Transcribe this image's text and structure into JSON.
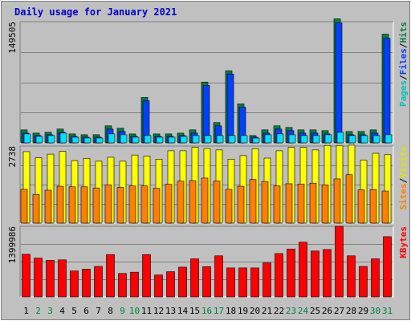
{
  "chart_data": {
    "type": "bar",
    "title": "Daily usage for January 2021",
    "categories": [
      "1",
      "2",
      "3",
      "4",
      "5",
      "6",
      "7",
      "8",
      "9",
      "10",
      "11",
      "12",
      "13",
      "14",
      "15",
      "16",
      "17",
      "18",
      "19",
      "20",
      "21",
      "22",
      "23",
      "24",
      "25",
      "26",
      "27",
      "28",
      "29",
      "30",
      "31"
    ],
    "weekend_days": [
      "2",
      "3",
      "9",
      "10",
      "16",
      "17",
      "23",
      "24",
      "30",
      "31"
    ],
    "colors": {
      "background": "#c0c0c0",
      "title": "#0000cc",
      "hits": "#008040",
      "files": "#0040ff",
      "pages": "#00e0ff",
      "visits": "#ffff00",
      "sites": "#ff8000",
      "kbytes": "#ff0000",
      "weekday_label": "#000000",
      "weekend_label": "#008040"
    },
    "panels": [
      {
        "id": "hits_files_pages",
        "max_label": "149505",
        "ylim": [
          0,
          149505
        ],
        "axis_labels": [
          {
            "text": "Pages",
            "color": "#00c0c0"
          },
          {
            "text": "/",
            "color": "#000000"
          },
          {
            "text": "Files",
            "color": "#0040ff"
          },
          {
            "text": "/",
            "color": "#000000"
          },
          {
            "text": "Hits",
            "color": "#008040"
          }
        ],
        "series": [
          {
            "name": "Hits",
            "values": [
              16000,
              12000,
              13000,
              17000,
              11000,
              10000,
              10000,
              21000,
              18000,
              11000,
              56000,
              11000,
              11000,
              12000,
              16000,
              75000,
              25000,
              89000,
              48000,
              9000,
              16000,
              21000,
              19000,
              16000,
              16000,
              15000,
              153000,
              14000,
              14000,
              16000,
              134000
            ]
          },
          {
            "name": "Files",
            "values": [
              12000,
              9000,
              10000,
              13000,
              8000,
              7000,
              7000,
              17000,
              14000,
              8000,
              52000,
              8000,
              8000,
              9000,
              12000,
              71000,
              21000,
              85000,
              44000,
              7000,
              12000,
              17000,
              15000,
              12000,
              12000,
              11000,
              148000,
              10000,
              10000,
              12000,
              129000
            ]
          },
          {
            "name": "Pages",
            "values": [
              11000,
              8000,
              9000,
              12000,
              7000,
              6000,
              6000,
              11000,
              10000,
              7000,
              9000,
              7000,
              7000,
              8000,
              9000,
              9000,
              9000,
              9000,
              9000,
              6000,
              10000,
              11000,
              10000,
              9000,
              9000,
              10000,
              13000,
              9000,
              9000,
              9000,
              10000
            ]
          }
        ]
      },
      {
        "id": "visits_sites",
        "max_label": "2738",
        "ylim": [
          0,
          2738
        ],
        "axis_labels": [
          {
            "text": "Sites",
            "color": "#ff8000"
          },
          {
            "text": "/",
            "color": "#000000"
          },
          {
            "text": "Visits",
            "color": "#e0e000"
          }
        ],
        "series": [
          {
            "name": "Visits",
            "values": [
              2540,
              2320,
              2450,
              2550,
              2220,
              2300,
              2200,
              2340,
              2200,
              2420,
              2380,
              2270,
              2570,
              2570,
              2700,
              2650,
              2600,
              2270,
              2400,
              2640,
              2310,
              2570,
              2690,
              2690,
              2600,
              2760,
              2760,
              2770,
              2240,
              2480,
              2430
            ]
          },
          {
            "name": "Sites",
            "values": [
              1200,
              1020,
              1170,
              1310,
              1290,
              1290,
              1250,
              1360,
              1270,
              1320,
              1320,
              1240,
              1380,
              1490,
              1510,
              1600,
              1500,
              1200,
              1310,
              1550,
              1480,
              1320,
              1400,
              1390,
              1420,
              1360,
              1570,
              1720,
              1180,
              1190,
              1140
            ]
          }
        ]
      },
      {
        "id": "kbytes",
        "max_label": "1399986",
        "ylim": [
          0,
          1399986
        ],
        "axis_labels": [
          {
            "text": "KBytes",
            "color": "#ff0000"
          }
        ],
        "series": [
          {
            "name": "KBytes",
            "values": [
              845000,
              770000,
              725000,
              735000,
              515000,
              550000,
              605000,
              840000,
              465000,
              490000,
              840000,
              435000,
              500000,
              590000,
              755000,
              600000,
              815000,
              575000,
              575000,
              575000,
              675000,
              860000,
              950000,
              1085000,
              910000,
              940000,
              1400000,
              815000,
              605000,
              755000,
              1195000
            ]
          }
        ]
      }
    ]
  }
}
